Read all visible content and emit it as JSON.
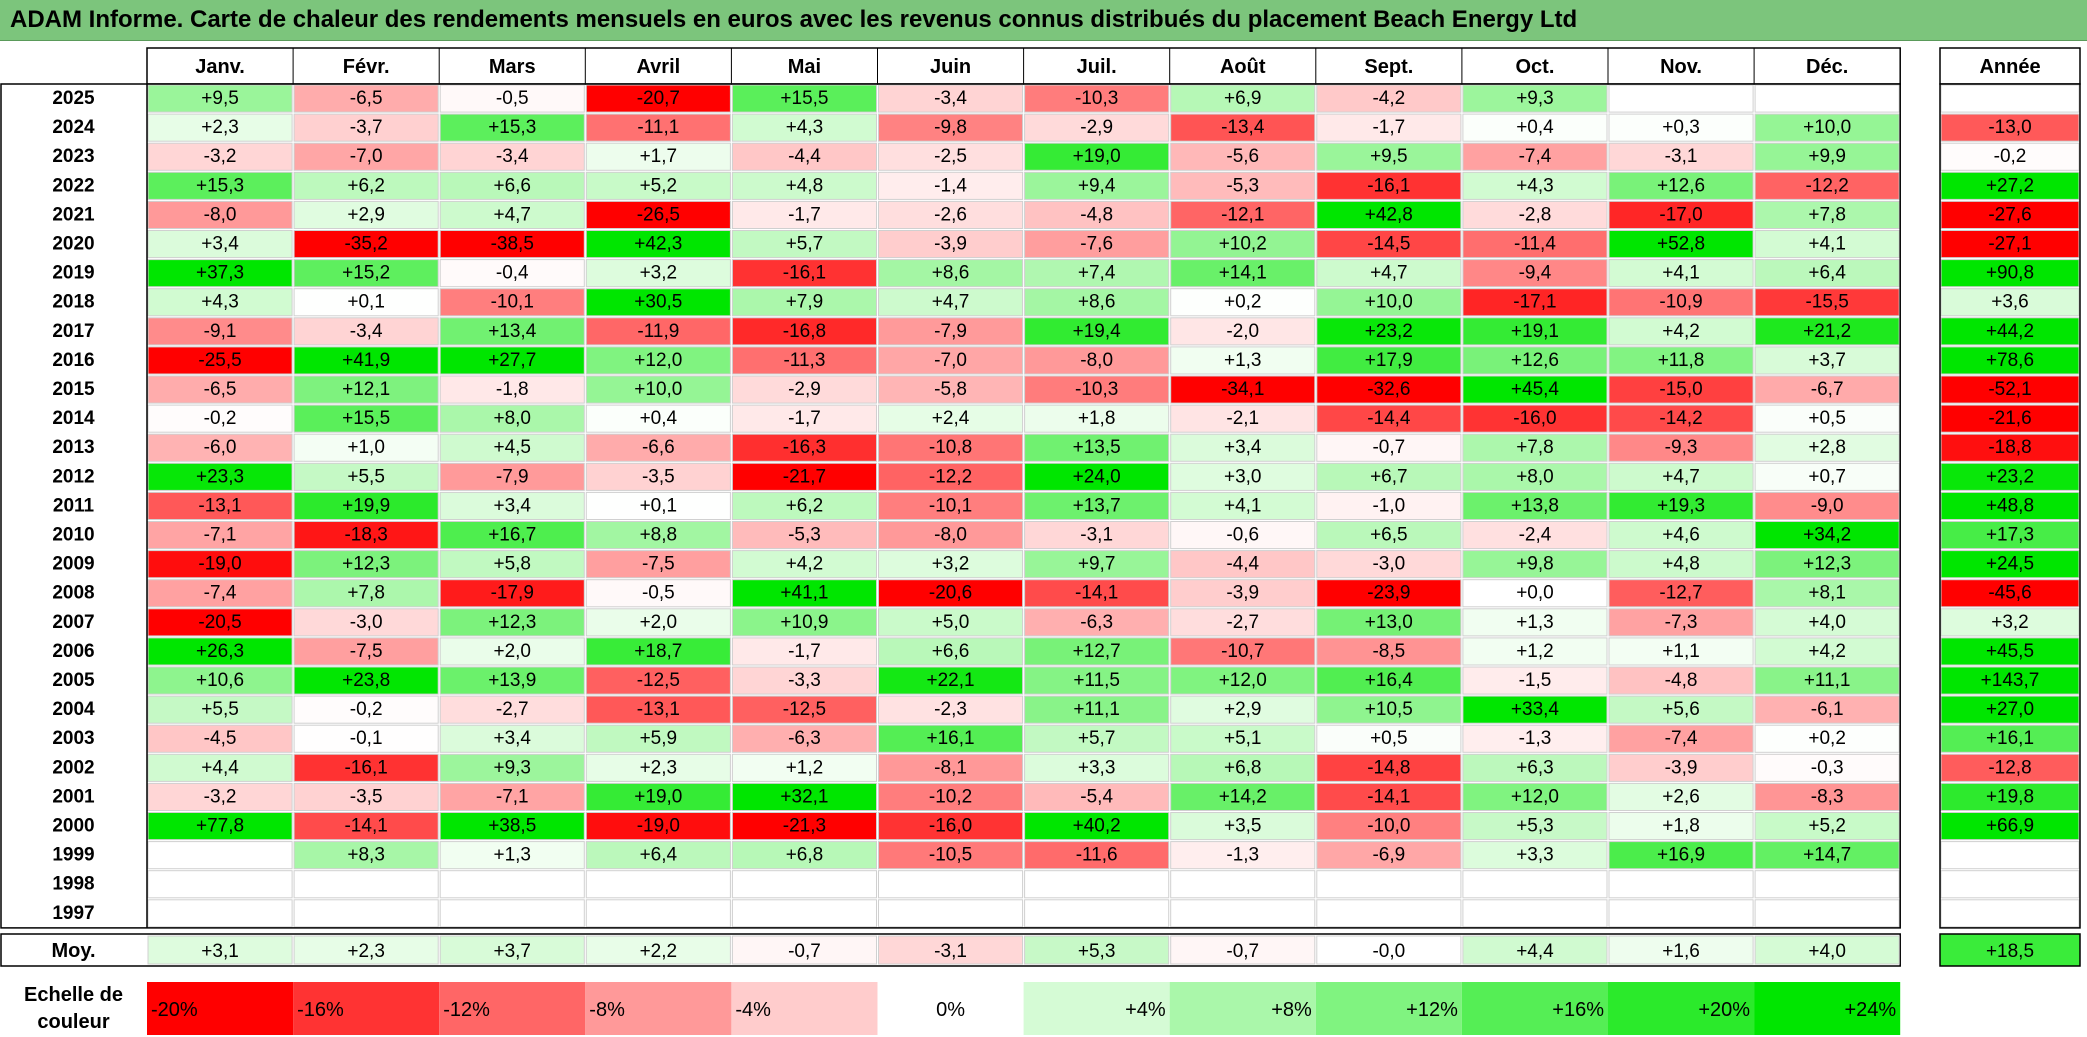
{
  "title": "ADAM Informe. Carte de chaleur des rendements mensuels en euros avec les revenus connus distribués du placement Beach Energy Ltd",
  "chart_data": {
    "type": "heatmap",
    "title": "ADAM Informe. Carte de chaleur des rendements mensuels en euros avec les revenus connus distribués du placement Beach Energy Ltd",
    "months": [
      "Janv.",
      "Févr.",
      "Mars",
      "Avril",
      "Mai",
      "Juin",
      "Juil.",
      "Août",
      "Sept.",
      "Oct.",
      "Nov.",
      "Déc."
    ],
    "year_header": "Année",
    "avg_label": "Moy.",
    "scale_label": [
      "Echelle de",
      "couleur"
    ],
    "colors": {
      "negative": "#ff0000",
      "neutral": "#ffffff",
      "positive": "#00e600",
      "title_bg": "#7cc57c"
    },
    "color_range": [
      -20,
      24
    ],
    "rows": [
      {
        "year": "2025",
        "m": [
          "+9,5",
          "-6,5",
          "-0,5",
          "-20,7",
          "+15,5",
          "-3,4",
          "-10,3",
          "+6,9",
          "-4,2",
          "+9,3",
          "",
          ""
        ],
        "y": ""
      },
      {
        "year": "2024",
        "m": [
          "+2,3",
          "-3,7",
          "+15,3",
          "-11,1",
          "+4,3",
          "-9,8",
          "-2,9",
          "-13,4",
          "-1,7",
          "+0,4",
          "+0,3",
          "+10,0"
        ],
        "y": "-13,0"
      },
      {
        "year": "2023",
        "m": [
          "-3,2",
          "-7,0",
          "-3,4",
          "+1,7",
          "-4,4",
          "-2,5",
          "+19,0",
          "-5,6",
          "+9,5",
          "-7,4",
          "-3,1",
          "+9,9"
        ],
        "y": "-0,2"
      },
      {
        "year": "2022",
        "m": [
          "+15,3",
          "+6,2",
          "+6,6",
          "+5,2",
          "+4,8",
          "-1,4",
          "+9,4",
          "-5,3",
          "-16,1",
          "+4,3",
          "+12,6",
          "-12,2"
        ],
        "y": "+27,2"
      },
      {
        "year": "2021",
        "m": [
          "-8,0",
          "+2,9",
          "+4,7",
          "-26,5",
          "-1,7",
          "-2,6",
          "-4,8",
          "-12,1",
          "+42,8",
          "-2,8",
          "-17,0",
          "+7,8"
        ],
        "y": "-27,6"
      },
      {
        "year": "2020",
        "m": [
          "+3,4",
          "-35,2",
          "-38,5",
          "+42,3",
          "+5,7",
          "-3,9",
          "-7,6",
          "+10,2",
          "-14,5",
          "-11,4",
          "+52,8",
          "+4,1"
        ],
        "y": "-27,1"
      },
      {
        "year": "2019",
        "m": [
          "+37,3",
          "+15,2",
          "-0,4",
          "+3,2",
          "-16,1",
          "+8,6",
          "+7,4",
          "+14,1",
          "+4,7",
          "-9,4",
          "+4,1",
          "+6,4"
        ],
        "y": "+90,8"
      },
      {
        "year": "2018",
        "m": [
          "+4,3",
          "+0,1",
          "-10,1",
          "+30,5",
          "+7,9",
          "+4,7",
          "+8,6",
          "+0,2",
          "+10,0",
          "-17,1",
          "-10,9",
          "-15,5"
        ],
        "y": "+3,6"
      },
      {
        "year": "2017",
        "m": [
          "-9,1",
          "-3,4",
          "+13,4",
          "-11,9",
          "-16,8",
          "-7,9",
          "+19,4",
          "-2,0",
          "+23,2",
          "+19,1",
          "+4,2",
          "+21,2"
        ],
        "y": "+44,2"
      },
      {
        "year": "2016",
        "m": [
          "-25,5",
          "+41,9",
          "+27,7",
          "+12,0",
          "-11,3",
          "-7,0",
          "-8,0",
          "+1,3",
          "+17,9",
          "+12,6",
          "+11,8",
          "+3,7"
        ],
        "y": "+78,6"
      },
      {
        "year": "2015",
        "m": [
          "-6,5",
          "+12,1",
          "-1,8",
          "+10,0",
          "-2,9",
          "-5,8",
          "-10,3",
          "-34,1",
          "-32,6",
          "+45,4",
          "-15,0",
          "-6,7"
        ],
        "y": "-52,1"
      },
      {
        "year": "2014",
        "m": [
          "-0,2",
          "+15,5",
          "+8,0",
          "+0,4",
          "-1,7",
          "+2,4",
          "+1,8",
          "-2,1",
          "-14,4",
          "-16,0",
          "-14,2",
          "+0,5"
        ],
        "y": "-21,6"
      },
      {
        "year": "2013",
        "m": [
          "-6,0",
          "+1,0",
          "+4,5",
          "-6,6",
          "-16,3",
          "-10,8",
          "+13,5",
          "+3,4",
          "-0,7",
          "+7,8",
          "-9,3",
          "+2,8"
        ],
        "y": "-18,8"
      },
      {
        "year": "2012",
        "m": [
          "+23,3",
          "+5,5",
          "-7,9",
          "-3,5",
          "-21,7",
          "-12,2",
          "+24,0",
          "+3,0",
          "+6,7",
          "+8,0",
          "+4,7",
          "+0,7"
        ],
        "y": "+23,2"
      },
      {
        "year": "2011",
        "m": [
          "-13,1",
          "+19,9",
          "+3,4",
          "+0,1",
          "+6,2",
          "-10,1",
          "+13,7",
          "+4,1",
          "-1,0",
          "+13,8",
          "+19,3",
          "-9,0"
        ],
        "y": "+48,8"
      },
      {
        "year": "2010",
        "m": [
          "-7,1",
          "-18,3",
          "+16,7",
          "+8,8",
          "-5,3",
          "-8,0",
          "-3,1",
          "-0,6",
          "+6,5",
          "-2,4",
          "+4,6",
          "+34,2"
        ],
        "y": "+17,3"
      },
      {
        "year": "2009",
        "m": [
          "-19,0",
          "+12,3",
          "+5,8",
          "-7,5",
          "+4,2",
          "+3,2",
          "+9,7",
          "-4,4",
          "-3,0",
          "+9,8",
          "+4,8",
          "+12,3"
        ],
        "y": "+24,5"
      },
      {
        "year": "2008",
        "m": [
          "-7,4",
          "+7,8",
          "-17,9",
          "-0,5",
          "+41,1",
          "-20,6",
          "-14,1",
          "-3,9",
          "-23,9",
          "+0,0",
          "-12,7",
          "+8,1"
        ],
        "y": "-45,6"
      },
      {
        "year": "2007",
        "m": [
          "-20,5",
          "-3,0",
          "+12,3",
          "+2,0",
          "+10,9",
          "+5,0",
          "-6,3",
          "-2,7",
          "+13,0",
          "+1,3",
          "-7,3",
          "+4,0"
        ],
        "y": "+3,2"
      },
      {
        "year": "2006",
        "m": [
          "+26,3",
          "-7,5",
          "+2,0",
          "+18,7",
          "-1,7",
          "+6,6",
          "+12,7",
          "-10,7",
          "-8,5",
          "+1,2",
          "+1,1",
          "+4,2"
        ],
        "y": "+45,5"
      },
      {
        "year": "2005",
        "m": [
          "+10,6",
          "+23,8",
          "+13,9",
          "-12,5",
          "-3,3",
          "+22,1",
          "+11,5",
          "+12,0",
          "+16,4",
          "-1,5",
          "-4,8",
          "+11,1"
        ],
        "y": "+143,7"
      },
      {
        "year": "2004",
        "m": [
          "+5,5",
          "-0,2",
          "-2,7",
          "-13,1",
          "-12,5",
          "-2,3",
          "+11,1",
          "+2,9",
          "+10,5",
          "+33,4",
          "+5,6",
          "-6,1"
        ],
        "y": "+27,0"
      },
      {
        "year": "2003",
        "m": [
          "-4,5",
          "-0,1",
          "+3,4",
          "+5,9",
          "-6,3",
          "+16,1",
          "+5,7",
          "+5,1",
          "+0,5",
          "-1,3",
          "-7,4",
          "+0,2"
        ],
        "y": "+16,1"
      },
      {
        "year": "2002",
        "m": [
          "+4,4",
          "-16,1",
          "+9,3",
          "+2,3",
          "+1,2",
          "-8,1",
          "+3,3",
          "+6,8",
          "-14,8",
          "+6,3",
          "-3,9",
          "-0,3"
        ],
        "y": "-12,8"
      },
      {
        "year": "2001",
        "m": [
          "-3,2",
          "-3,5",
          "-7,1",
          "+19,0",
          "+32,1",
          "-10,2",
          "-5,4",
          "+14,2",
          "-14,1",
          "+12,0",
          "+2,6",
          "-8,3"
        ],
        "y": "+19,8"
      },
      {
        "year": "2000",
        "m": [
          "+77,8",
          "-14,1",
          "+38,5",
          "-19,0",
          "-21,3",
          "-16,0",
          "+40,2",
          "+3,5",
          "-10,0",
          "+5,3",
          "+1,8",
          "+5,2"
        ],
        "y": "+66,9"
      },
      {
        "year": "1999",
        "m": [
          "",
          "+8,3",
          "+1,3",
          "+6,4",
          "+6,8",
          "-10,5",
          "-11,6",
          "-1,3",
          "-6,9",
          "+3,3",
          "+16,9",
          "+14,7"
        ],
        "y": ""
      },
      {
        "year": "1998",
        "m": [
          "",
          "",
          "",
          "",
          "",
          "",
          "",
          "",
          "",
          "",
          "",
          ""
        ],
        "y": ""
      },
      {
        "year": "1997",
        "m": [
          "",
          "",
          "",
          "",
          "",
          "",
          "",
          "",
          "",
          "",
          "",
          ""
        ],
        "y": ""
      }
    ],
    "average": {
      "m": [
        "+3,1",
        "+2,3",
        "+3,7",
        "+2,2",
        "-0,7",
        "-3,1",
        "+5,3",
        "-0,7",
        "-0,0",
        "+4,4",
        "+1,6",
        "+4,0"
      ],
      "y": "+18,5"
    },
    "scale": [
      "-20%",
      "-16%",
      "-12%",
      "-8%",
      "-4%",
      "0%",
      "+4%",
      "+8%",
      "+12%",
      "+16%",
      "+20%",
      "+24%"
    ]
  }
}
